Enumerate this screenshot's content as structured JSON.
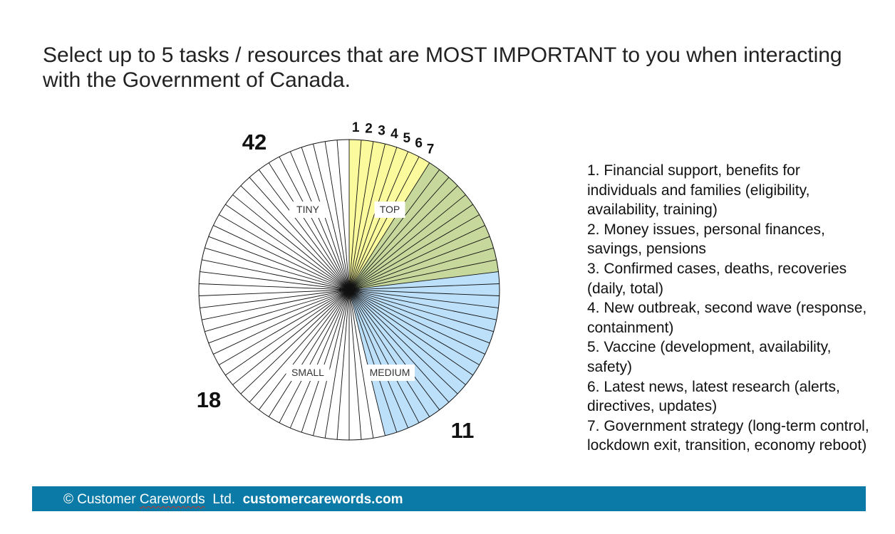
{
  "title": "Select up to 5 tasks / resources that are MOST IMPORTANT to you when interacting with the Government of Canada.",
  "chart_data": {
    "type": "pie",
    "title": "",
    "categories": [
      "TOP",
      "MEDIUM",
      "SMALL",
      "TINY"
    ],
    "values": [
      7,
      11,
      18,
      42
    ],
    "slice_colors": [
      "#fbfb9e",
      "#c6d89c",
      "#bde0fa",
      "#ffffff"
    ],
    "wedge_labels": [
      "1",
      "2",
      "3",
      "4",
      "5",
      "6",
      "7"
    ],
    "annotations": [
      {
        "text": "42",
        "near": "TINY"
      },
      {
        "text": "18",
        "near": "SMALL"
      },
      {
        "text": "11",
        "near": "MEDIUM"
      }
    ],
    "grid": false,
    "legend": "right"
  },
  "legend": [
    "1.  Financial support, benefits for individuals and families (eligibility, availability, training)",
    "2.  Money issues, personal finances, savings, pensions",
    "3.  Confirmed cases, deaths, recoveries (daily, total)",
    "4.  New outbreak, second wave (response, containment)",
    "5.  Vaccine (development, availability, safety)",
    "6.  Latest news, latest research (alerts, directives, updates)",
    "7.  Government strategy (long-term control, lockdown exit, transition, economy reboot)"
  ],
  "footer": {
    "copyright": "© Customer ",
    "brand": "Carewords",
    "company": "  Ltd.  ",
    "website": "customercarewords.com"
  }
}
